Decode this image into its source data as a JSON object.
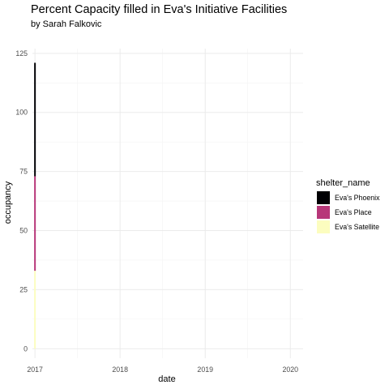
{
  "chart_data": {
    "type": "bar",
    "title": "Percent Capacity filled in Eva's Initiative Facilities",
    "subtitle": "by Sarah Falkovic",
    "xlabel": "date",
    "ylabel": "occupancy",
    "x_ticks": [
      "2017",
      "2018",
      "2019",
      "2020"
    ],
    "y_ticks": [
      0,
      25,
      50,
      75,
      100,
      125
    ],
    "ylim": [
      -4,
      127
    ],
    "xlim": [
      2016.97,
      2020.15
    ],
    "stacked": true,
    "grid": true,
    "legend_title": "shelter_name",
    "legend_position": "right",
    "categories": [
      "2017"
    ],
    "series": [
      {
        "name": "Eva's Satellite",
        "color": "#FCFDBF",
        "x": [
          2017.0
        ],
        "values": [
          33
        ]
      },
      {
        "name": "Eva's Place",
        "color": "#B73779",
        "x": [
          2017.0
        ],
        "values": [
          40
        ]
      },
      {
        "name": "Eva's Phoenix",
        "color": "#000004",
        "x": [
          2017.0
        ],
        "values": [
          48
        ]
      }
    ]
  }
}
